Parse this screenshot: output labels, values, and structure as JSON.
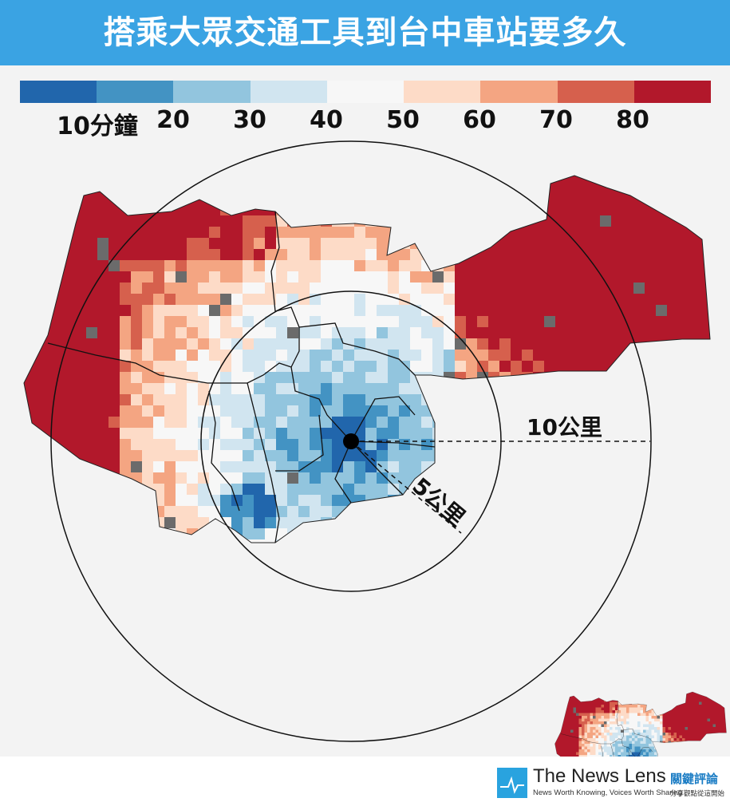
{
  "title": "搭乘大眾交通工具到台中車站要多久",
  "legend": {
    "colors": [
      "#2166ac",
      "#4393c3",
      "#92c5de",
      "#d1e5f0",
      "#f7f7f7",
      "#fddbc7",
      "#f4a582",
      "#d6604d",
      "#b2182b"
    ],
    "labels": [
      "10分鐘",
      "20",
      "30",
      "40",
      "50",
      "60",
      "70",
      "80"
    ]
  },
  "map": {
    "scale_labels": {
      "ten_km": "10公里",
      "five_km": "5公里"
    },
    "no_data_color": "#6b6b6b"
  },
  "footer": {
    "brand": "The News Lens",
    "slogan": "News Worth Knowing, Voices Worth Sharing",
    "brand_cn": "關鍵評論",
    "slogan_cn": "分享觀點從這開始"
  }
}
